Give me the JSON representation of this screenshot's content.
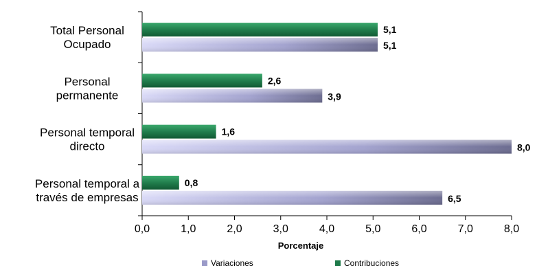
{
  "chart_data": {
    "type": "bar",
    "orientation": "horizontal",
    "categories": [
      [
        "Total Personal",
        "Ocupado"
      ],
      [
        "Personal",
        "permanente"
      ],
      [
        "Personal temporal",
        "directo"
      ],
      [
        "Personal temporal a",
        "través de empresas"
      ]
    ],
    "series": [
      {
        "name": "Contribuciones",
        "values": [
          5.1,
          2.6,
          1.6,
          0.8
        ],
        "labels": [
          "5,1",
          "2,6",
          "1,6",
          "0,8"
        ],
        "color": "#2e8b57"
      },
      {
        "name": "Variaciones",
        "values": [
          5.1,
          3.9,
          8.0,
          6.5
        ],
        "labels": [
          "5,1",
          "3,9",
          "8,0",
          "6,5"
        ],
        "color": "#a9a9d4"
      }
    ],
    "xlabel": "Porcentaje",
    "xlim": [
      0,
      8
    ],
    "xticks": [
      "0,0",
      "1,0",
      "2,0",
      "3,0",
      "4,0",
      "5,0",
      "6,0",
      "7,0",
      "8,0"
    ],
    "legend": {
      "placement": "bottom",
      "order": [
        "Variaciones",
        "Contribuciones"
      ]
    },
    "grid": false
  }
}
